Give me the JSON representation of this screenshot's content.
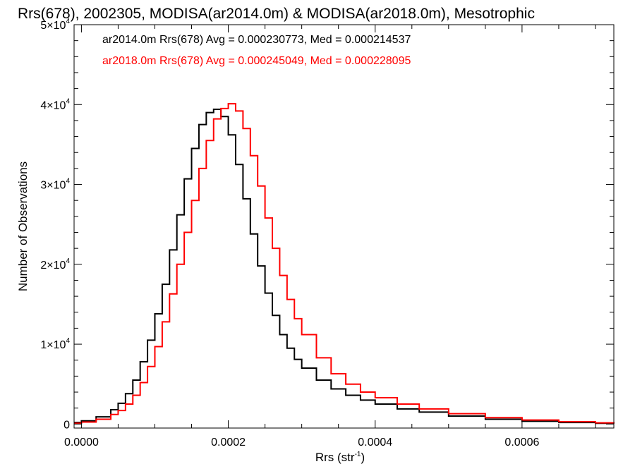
{
  "chart_data": {
    "type": "line",
    "title": "Rrs(678), 2002305, MODISA(ar2014.0m) & MODISA(ar2018.0m), Mesotrophic",
    "xlabel": {
      "base": "Rrs (str",
      "sup": "-1",
      "tail": ")"
    },
    "ylabel": "Number of Observations",
    "xlim": [
      -1e-05,
      0.000725
    ],
    "ylim": [
      -500,
      50000
    ],
    "x_ticks": [
      {
        "value": 0.0,
        "label": "0.0000"
      },
      {
        "value": 0.0002,
        "label": "0.0002"
      },
      {
        "value": 0.0004,
        "label": "0.0004"
      },
      {
        "value": 0.0006,
        "label": "0.0006"
      }
    ],
    "x_minor_step": 5e-05,
    "y_ticks": [
      {
        "value": 0,
        "mant": "0",
        "exp": ""
      },
      {
        "value": 10000,
        "mant": "1×10",
        "exp": "4"
      },
      {
        "value": 20000,
        "mant": "2×10",
        "exp": "4"
      },
      {
        "value": 30000,
        "mant": "3×10",
        "exp": "4"
      },
      {
        "value": 40000,
        "mant": "4×10",
        "exp": "4"
      },
      {
        "value": 50000,
        "mant": "5×10",
        "exp": "4"
      }
    ],
    "y_minor_step": 2000,
    "grid": false,
    "legend_position": "top-left",
    "series": [
      {
        "name": "ar2014.0m Rrs(678) Avg = 0.000230773, Med = 0.000214537",
        "color": "#000000",
        "step": true,
        "x": [
          -1e-05,
          0.0,
          2e-05,
          4e-05,
          5e-05,
          6e-05,
          7e-05,
          8e-05,
          9e-05,
          0.0001,
          0.00011,
          0.00012,
          0.00013,
          0.00014,
          0.00015,
          0.00016,
          0.00017,
          0.00018,
          0.00019,
          0.0002,
          0.00021,
          0.00022,
          0.00023,
          0.00024,
          0.00025,
          0.00026,
          0.00027,
          0.00028,
          0.00029,
          0.0003,
          0.00032,
          0.00034,
          0.00036,
          0.00038,
          0.0004,
          0.00043,
          0.00046,
          0.0005,
          0.00055,
          0.0006,
          0.00065,
          0.0007,
          0.000725
        ],
        "y": [
          200,
          400,
          900,
          1800,
          2600,
          3800,
          5500,
          7800,
          10500,
          13800,
          17500,
          21800,
          26200,
          30700,
          34500,
          37500,
          39000,
          39400,
          38500,
          36200,
          32500,
          28200,
          23800,
          19800,
          16400,
          13600,
          11200,
          9500,
          8100,
          7000,
          5500,
          4400,
          3600,
          3000,
          2500,
          1900,
          1500,
          1000,
          600,
          350,
          200,
          100,
          60
        ]
      },
      {
        "name": "ar2018.0m Rrs(678) Avg = 0.000245049, Med = 0.000228095",
        "color": "#ff0000",
        "step": true,
        "x": [
          -1e-05,
          0.0,
          2e-05,
          4e-05,
          5e-05,
          6e-05,
          7e-05,
          8e-05,
          9e-05,
          0.0001,
          0.00011,
          0.00012,
          0.00013,
          0.00014,
          0.00015,
          0.00016,
          0.00017,
          0.00018,
          0.00019,
          0.0002,
          0.00021,
          0.00022,
          0.00023,
          0.00024,
          0.00025,
          0.00026,
          0.00027,
          0.00028,
          0.00029,
          0.0003,
          0.00032,
          0.00034,
          0.00036,
          0.00038,
          0.0004,
          0.00043,
          0.00046,
          0.0005,
          0.00055,
          0.0006,
          0.00065,
          0.0007,
          0.000725
        ],
        "y": [
          100,
          250,
          600,
          1200,
          1700,
          2500,
          3600,
          5200,
          7200,
          9700,
          12800,
          16300,
          20000,
          24000,
          28000,
          32000,
          35500,
          38200,
          39500,
          40100,
          39200,
          37000,
          33600,
          29800,
          25800,
          22000,
          18600,
          15600,
          13200,
          11200,
          8300,
          6300,
          5000,
          4000,
          3300,
          2500,
          1900,
          1300,
          800,
          500,
          300,
          150,
          80
        ]
      }
    ]
  }
}
